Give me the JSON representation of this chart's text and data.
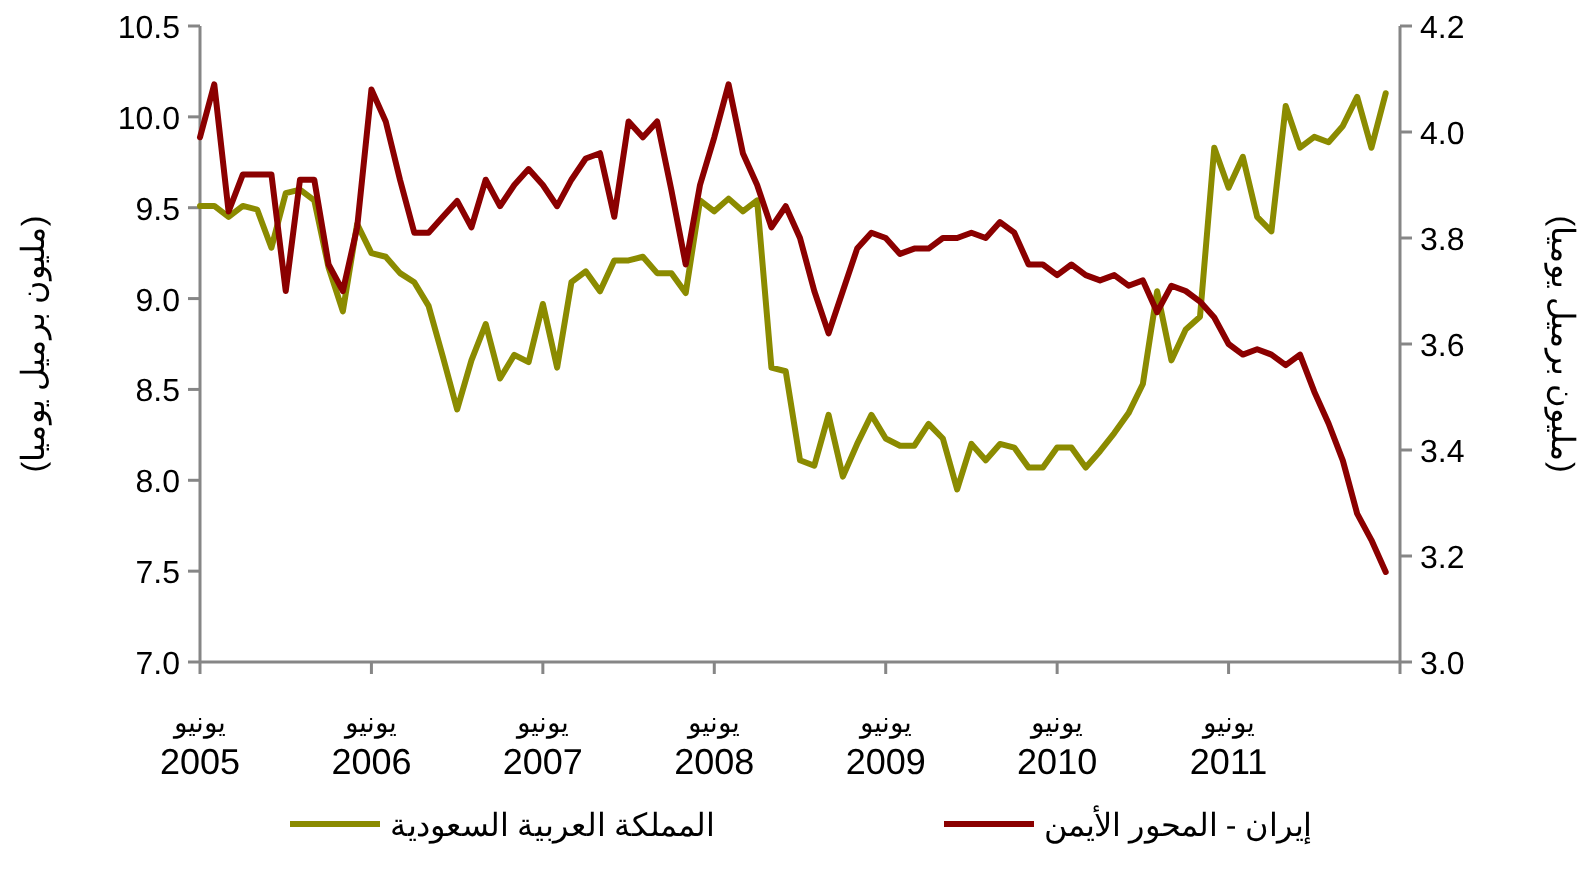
{
  "chart_data": {
    "type": "line",
    "ylabel": "(مليون برميل يوميا)",
    "y2label": "(مليون برميل يوميا)",
    "legend": "bottom",
    "grid": false,
    "x": [
      "2005-06",
      "2005-07",
      "2005-08",
      "2005-09",
      "2005-10",
      "2005-11",
      "2005-12",
      "2006-01",
      "2006-02",
      "2006-03",
      "2006-04",
      "2006-05",
      "2006-06",
      "2006-07",
      "2006-08",
      "2006-09",
      "2006-10",
      "2006-11",
      "2006-12",
      "2007-01",
      "2007-02",
      "2007-03",
      "2007-04",
      "2007-05",
      "2007-06",
      "2007-07",
      "2007-08",
      "2007-09",
      "2007-10",
      "2007-11",
      "2007-12",
      "2008-01",
      "2008-02",
      "2008-03",
      "2008-04",
      "2008-05",
      "2008-06",
      "2008-07",
      "2008-08",
      "2008-09",
      "2008-10",
      "2008-11",
      "2008-12",
      "2009-01",
      "2009-02",
      "2009-03",
      "2009-04",
      "2009-05",
      "2009-06",
      "2009-07",
      "2009-08",
      "2009-09",
      "2009-10",
      "2009-11",
      "2009-12",
      "2010-01",
      "2010-02",
      "2010-03",
      "2010-04",
      "2010-05",
      "2010-06",
      "2010-07",
      "2010-08",
      "2010-09",
      "2010-10",
      "2010-11",
      "2010-12",
      "2011-01",
      "2011-02",
      "2011-03",
      "2011-04",
      "2011-05",
      "2011-06",
      "2011-07",
      "2011-08",
      "2011-09",
      "2011-10",
      "2011-11",
      "2011-12",
      "2012-01",
      "2012-02",
      "2012-03",
      "2012-04",
      "2012-05"
    ],
    "xlim": [
      "2005-06",
      "2012-06"
    ],
    "xticks": [
      {
        "value": "2005-06",
        "label": "يونيو\n2005"
      },
      {
        "value": "2006-06",
        "label": "يونيو\n2006"
      },
      {
        "value": "2007-06",
        "label": "يونيو\n2007"
      },
      {
        "value": "2008-06",
        "label": "يونيو\n2008"
      },
      {
        "value": "2009-06",
        "label": "يونيو\n2009"
      },
      {
        "value": "2010-06",
        "label": "يونيو\n2010"
      },
      {
        "value": "2011-06",
        "label": "يونيو\n2011"
      },
      {
        "value": "2012-06",
        "label": null
      }
    ],
    "ylim": [
      7.0,
      10.5
    ],
    "yticks": [
      {
        "value": 7.0,
        "label": "7.0"
      },
      {
        "value": 7.5,
        "label": "7.5"
      },
      {
        "value": 8.0,
        "label": "8.0"
      },
      {
        "value": 8.5,
        "label": "8.5"
      },
      {
        "value": 9.0,
        "label": "9.0"
      },
      {
        "value": 9.5,
        "label": "9.5"
      },
      {
        "value": 10.0,
        "label": "10.0"
      },
      {
        "value": 10.5,
        "label": "10.5"
      }
    ],
    "y2lim": [
      3.0,
      4.2
    ],
    "y2ticks": [
      {
        "value": 3.0,
        "label": "3.0"
      },
      {
        "value": 3.2,
        "label": "3.2"
      },
      {
        "value": 3.4,
        "label": "3.4"
      },
      {
        "value": 3.6,
        "label": "3.6"
      },
      {
        "value": 3.8,
        "label": "3.8"
      },
      {
        "value": 4.0,
        "label": "4.0"
      },
      {
        "value": 4.2,
        "label": "4.2"
      }
    ],
    "series": [
      {
        "name": "المملكة العربية السعودية",
        "color": "#8b8b00",
        "values": [
          9.51,
          9.51,
          9.45,
          9.51,
          9.49,
          9.28,
          9.58,
          9.6,
          9.54,
          9.17,
          8.93,
          9.41,
          9.25,
          9.23,
          9.14,
          9.09,
          8.96,
          8.68,
          8.39,
          8.66,
          8.86,
          8.56,
          8.69,
          8.65,
          8.97,
          8.62,
          9.09,
          9.15,
          9.04,
          9.21,
          9.21,
          9.23,
          9.14,
          9.14,
          9.03,
          9.54,
          9.48,
          9.55,
          9.48,
          9.54,
          8.62,
          8.6,
          8.11,
          8.08,
          8.36,
          8.02,
          8.2,
          8.36,
          8.23,
          8.19,
          8.19,
          8.31,
          8.23,
          7.95,
          8.2,
          8.11,
          8.2,
          8.18,
          8.07,
          8.07,
          8.18,
          8.18,
          8.07,
          8.16,
          8.26,
          8.37,
          8.53,
          9.04,
          8.66,
          8.83,
          8.9,
          9.83,
          9.61,
          9.78,
          9.45,
          9.37,
          10.06,
          9.83,
          9.89,
          9.86,
          9.95,
          10.11,
          9.83,
          10.13
        ]
      },
      {
        "name": "إيران - المحور الأيمن",
        "color": "#8b0000",
        "axis": "y2",
        "values": [
          3.99,
          4.09,
          3.85,
          3.92,
          3.92,
          3.92,
          3.7,
          3.91,
          3.91,
          3.75,
          3.7,
          3.82,
          4.08,
          4.02,
          3.91,
          3.81,
          3.81,
          3.84,
          3.87,
          3.82,
          3.91,
          3.86,
          3.9,
          3.93,
          3.9,
          3.86,
          3.91,
          3.95,
          3.96,
          3.84,
          4.02,
          3.99,
          4.02,
          3.89,
          3.75,
          3.9,
          3.99,
          4.09,
          3.96,
          3.9,
          3.82,
          3.86,
          3.8,
          3.7,
          3.62,
          3.7,
          3.78,
          3.81,
          3.8,
          3.77,
          3.78,
          3.78,
          3.8,
          3.8,
          3.81,
          3.8,
          3.83,
          3.81,
          3.75,
          3.75,
          3.73,
          3.75,
          3.73,
          3.72,
          3.73,
          3.71,
          3.72,
          3.66,
          3.71,
          3.7,
          3.68,
          3.65,
          3.6,
          3.58,
          3.59,
          3.58,
          3.56,
          3.58,
          3.51,
          3.45,
          3.38,
          3.28,
          3.23,
          3.17
        ]
      }
    ]
  }
}
